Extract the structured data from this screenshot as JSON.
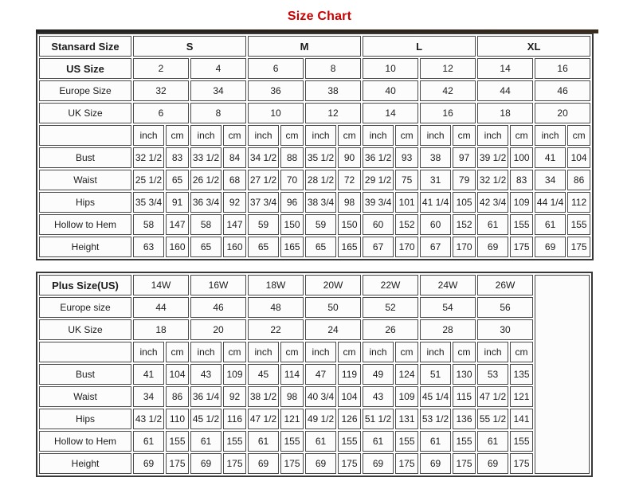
{
  "title": "Size Chart",
  "colors": {
    "title": "#cc0000",
    "top_bar": "#3a2a1c",
    "cell_border": "#4a4a4a",
    "cell_bg": "#fcfcfc"
  },
  "tables": [
    {
      "name": "standard-size-table",
      "rows": [
        [
          {
            "t": "Stansard Size",
            "b": 1
          },
          {
            "t": "S",
            "b": 1,
            "cs": 4
          },
          {
            "t": "M",
            "b": 1,
            "cs": 4
          },
          {
            "t": "L",
            "b": 1,
            "cs": 4
          },
          {
            "t": "XL",
            "b": 1,
            "cs": 4
          }
        ],
        [
          {
            "t": "US Size",
            "b": 1
          },
          {
            "t": "2",
            "cs": 2
          },
          {
            "t": "4",
            "cs": 2
          },
          {
            "t": "6",
            "cs": 2
          },
          {
            "t": "8",
            "cs": 2
          },
          {
            "t": "10",
            "cs": 2
          },
          {
            "t": "12",
            "cs": 2
          },
          {
            "t": "14",
            "cs": 2
          },
          {
            "t": "16",
            "cs": 2
          }
        ],
        [
          {
            "t": "Europe Size"
          },
          {
            "t": "32",
            "cs": 2
          },
          {
            "t": "34",
            "cs": 2
          },
          {
            "t": "36",
            "cs": 2
          },
          {
            "t": "38",
            "cs": 2
          },
          {
            "t": "40",
            "cs": 2
          },
          {
            "t": "42",
            "cs": 2
          },
          {
            "t": "44",
            "cs": 2
          },
          {
            "t": "46",
            "cs": 2
          }
        ],
        [
          {
            "t": "UK Size"
          },
          {
            "t": "6",
            "cs": 2
          },
          {
            "t": "8",
            "cs": 2
          },
          {
            "t": "10",
            "cs": 2
          },
          {
            "t": "12",
            "cs": 2
          },
          {
            "t": "14",
            "cs": 2
          },
          {
            "t": "16",
            "cs": 2
          },
          {
            "t": "18",
            "cs": 2
          },
          {
            "t": "20",
            "cs": 2
          }
        ],
        [
          {
            "t": ""
          },
          {
            "t": "inch"
          },
          {
            "t": "cm"
          },
          {
            "t": "inch"
          },
          {
            "t": "cm"
          },
          {
            "t": "inch"
          },
          {
            "t": "cm"
          },
          {
            "t": "inch"
          },
          {
            "t": "cm"
          },
          {
            "t": "inch"
          },
          {
            "t": "cm"
          },
          {
            "t": "inch"
          },
          {
            "t": "cm"
          },
          {
            "t": "inch"
          },
          {
            "t": "cm"
          },
          {
            "t": "inch"
          },
          {
            "t": "cm"
          }
        ],
        [
          {
            "t": "Bust"
          },
          {
            "t": "32 1/2"
          },
          {
            "t": "83"
          },
          {
            "t": "33 1/2"
          },
          {
            "t": "84"
          },
          {
            "t": "34 1/2"
          },
          {
            "t": "88"
          },
          {
            "t": "35 1/2"
          },
          {
            "t": "90"
          },
          {
            "t": "36 1/2"
          },
          {
            "t": "93"
          },
          {
            "t": "38"
          },
          {
            "t": "97"
          },
          {
            "t": "39 1/2"
          },
          {
            "t": "100"
          },
          {
            "t": "41"
          },
          {
            "t": "104"
          }
        ],
        [
          {
            "t": "Waist"
          },
          {
            "t": "25 1/2"
          },
          {
            "t": "65"
          },
          {
            "t": "26 1/2"
          },
          {
            "t": "68"
          },
          {
            "t": "27 1/2"
          },
          {
            "t": "70"
          },
          {
            "t": "28 1/2"
          },
          {
            "t": "72"
          },
          {
            "t": "29 1/2"
          },
          {
            "t": "75"
          },
          {
            "t": "31"
          },
          {
            "t": "79"
          },
          {
            "t": "32 1/2"
          },
          {
            "t": "83"
          },
          {
            "t": "34"
          },
          {
            "t": "86"
          }
        ],
        [
          {
            "t": "Hips"
          },
          {
            "t": "35 3/4"
          },
          {
            "t": "91"
          },
          {
            "t": "36 3/4"
          },
          {
            "t": "92"
          },
          {
            "t": "37 3/4"
          },
          {
            "t": "96"
          },
          {
            "t": "38 3/4"
          },
          {
            "t": "98"
          },
          {
            "t": "39 3/4"
          },
          {
            "t": "101"
          },
          {
            "t": "41 1/4"
          },
          {
            "t": "105"
          },
          {
            "t": "42 3/4"
          },
          {
            "t": "109"
          },
          {
            "t": "44 1/4"
          },
          {
            "t": "112"
          }
        ],
        [
          {
            "t": "Hollow to Hem"
          },
          {
            "t": "58"
          },
          {
            "t": "147"
          },
          {
            "t": "58"
          },
          {
            "t": "147"
          },
          {
            "t": "59"
          },
          {
            "t": "150"
          },
          {
            "t": "59"
          },
          {
            "t": "150"
          },
          {
            "t": "60"
          },
          {
            "t": "152"
          },
          {
            "t": "60"
          },
          {
            "t": "152"
          },
          {
            "t": "61"
          },
          {
            "t": "155"
          },
          {
            "t": "61"
          },
          {
            "t": "155"
          }
        ],
        [
          {
            "t": "Height"
          },
          {
            "t": "63"
          },
          {
            "t": "160"
          },
          {
            "t": "65"
          },
          {
            "t": "160"
          },
          {
            "t": "65"
          },
          {
            "t": "165"
          },
          {
            "t": "65"
          },
          {
            "t": "165"
          },
          {
            "t": "67"
          },
          {
            "t": "170"
          },
          {
            "t": "67"
          },
          {
            "t": "170"
          },
          {
            "t": "69"
          },
          {
            "t": "175"
          },
          {
            "t": "69"
          },
          {
            "t": "175"
          }
        ]
      ]
    },
    {
      "name": "plus-size-table",
      "rows": [
        [
          {
            "t": "Plus Size(US)",
            "b": 1
          },
          {
            "t": "14W",
            "cs": 2
          },
          {
            "t": "16W",
            "cs": 2
          },
          {
            "t": "18W",
            "cs": 2
          },
          {
            "t": "20W",
            "cs": 2
          },
          {
            "t": "22W",
            "cs": 2
          },
          {
            "t": "24W",
            "cs": 2
          },
          {
            "t": "26W",
            "cs": 2
          },
          {
            "t": "",
            "rs": 9
          }
        ],
        [
          {
            "t": "Europe size"
          },
          {
            "t": "44",
            "cs": 2
          },
          {
            "t": "46",
            "cs": 2
          },
          {
            "t": "48",
            "cs": 2
          },
          {
            "t": "50",
            "cs": 2
          },
          {
            "t": "52",
            "cs": 2
          },
          {
            "t": "54",
            "cs": 2
          },
          {
            "t": "56",
            "cs": 2
          }
        ],
        [
          {
            "t": "UK Size"
          },
          {
            "t": "18",
            "cs": 2
          },
          {
            "t": "20",
            "cs": 2
          },
          {
            "t": "22",
            "cs": 2
          },
          {
            "t": "24",
            "cs": 2
          },
          {
            "t": "26",
            "cs": 2
          },
          {
            "t": "28",
            "cs": 2
          },
          {
            "t": "30",
            "cs": 2
          }
        ],
        [
          {
            "t": ""
          },
          {
            "t": "inch"
          },
          {
            "t": "cm"
          },
          {
            "t": "inch"
          },
          {
            "t": "cm"
          },
          {
            "t": "inch"
          },
          {
            "t": "cm"
          },
          {
            "t": "inch"
          },
          {
            "t": "cm"
          },
          {
            "t": "inch"
          },
          {
            "t": "cm"
          },
          {
            "t": "inch"
          },
          {
            "t": "cm"
          },
          {
            "t": "inch"
          },
          {
            "t": "cm"
          }
        ],
        [
          {
            "t": "Bust"
          },
          {
            "t": "41"
          },
          {
            "t": "104"
          },
          {
            "t": "43"
          },
          {
            "t": "109"
          },
          {
            "t": "45"
          },
          {
            "t": "114"
          },
          {
            "t": "47"
          },
          {
            "t": "119"
          },
          {
            "t": "49"
          },
          {
            "t": "124"
          },
          {
            "t": "51"
          },
          {
            "t": "130"
          },
          {
            "t": "53"
          },
          {
            "t": "135"
          }
        ],
        [
          {
            "t": "Waist"
          },
          {
            "t": "34"
          },
          {
            "t": "86"
          },
          {
            "t": "36 1/4"
          },
          {
            "t": "92"
          },
          {
            "t": "38 1/2"
          },
          {
            "t": "98"
          },
          {
            "t": "40 3/4"
          },
          {
            "t": "104"
          },
          {
            "t": "43"
          },
          {
            "t": "109"
          },
          {
            "t": "45 1/4"
          },
          {
            "t": "115"
          },
          {
            "t": "47 1/2"
          },
          {
            "t": "121"
          }
        ],
        [
          {
            "t": "Hips"
          },
          {
            "t": "43 1/2"
          },
          {
            "t": "110"
          },
          {
            "t": "45 1/2"
          },
          {
            "t": "116"
          },
          {
            "t": "47 1/2"
          },
          {
            "t": "121"
          },
          {
            "t": "49 1/2"
          },
          {
            "t": "126"
          },
          {
            "t": "51 1/2"
          },
          {
            "t": "131"
          },
          {
            "t": "53 1/2"
          },
          {
            "t": "136"
          },
          {
            "t": "55 1/2"
          },
          {
            "t": "141"
          }
        ],
        [
          {
            "t": "Hollow to Hem"
          },
          {
            "t": "61"
          },
          {
            "t": "155"
          },
          {
            "t": "61"
          },
          {
            "t": "155"
          },
          {
            "t": "61"
          },
          {
            "t": "155"
          },
          {
            "t": "61"
          },
          {
            "t": "155"
          },
          {
            "t": "61"
          },
          {
            "t": "155"
          },
          {
            "t": "61"
          },
          {
            "t": "155"
          },
          {
            "t": "61"
          },
          {
            "t": "155"
          }
        ],
        [
          {
            "t": "Height"
          },
          {
            "t": "69"
          },
          {
            "t": "175"
          },
          {
            "t": "69"
          },
          {
            "t": "175"
          },
          {
            "t": "69"
          },
          {
            "t": "175"
          },
          {
            "t": "69"
          },
          {
            "t": "175"
          },
          {
            "t": "69"
          },
          {
            "t": "175"
          },
          {
            "t": "69"
          },
          {
            "t": "175"
          },
          {
            "t": "69"
          },
          {
            "t": "175"
          }
        ]
      ]
    }
  ]
}
